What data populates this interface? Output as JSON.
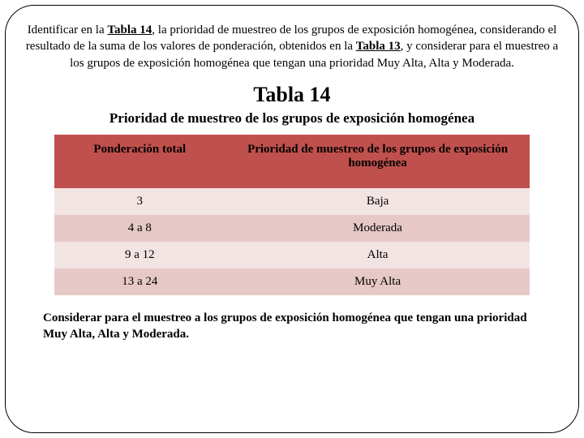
{
  "intro": {
    "prefix": "Identificar en la ",
    "bold1": "Tabla 14",
    "mid": ", la prioridad de muestreo de los grupos de exposición homogénea, considerando el resultado de la suma de los valores de ponderación, obtenidos en la ",
    "bold2": "Tabla 13",
    "suffix": ", y considerar para el muestreo a los grupos de exposición homogénea que tengan una prioridad Muy Alta, Alta y Moderada."
  },
  "title": "Tabla 14",
  "subtitle": "Prioridad de muestreo de los grupos de exposición homogénea",
  "table": {
    "header_bg": "#c0504d",
    "row_even_bg": "#f2e4e3",
    "row_odd_bg": "#e6c9c7",
    "col1_width": "36%",
    "col2_width": "64%",
    "headers": [
      "Ponderación total",
      "Prioridad de muestreo de los grupos de exposición homogénea"
    ],
    "rows": [
      [
        "3",
        "Baja"
      ],
      [
        "4  a  8",
        "Moderada"
      ],
      [
        "9  a  12",
        "Alta"
      ],
      [
        "13 a 24",
        "Muy Alta"
      ]
    ]
  },
  "footer": "Considerar para el muestreo a los grupos de exposición homogénea que tengan una prioridad Muy Alta, Alta y Moderada."
}
